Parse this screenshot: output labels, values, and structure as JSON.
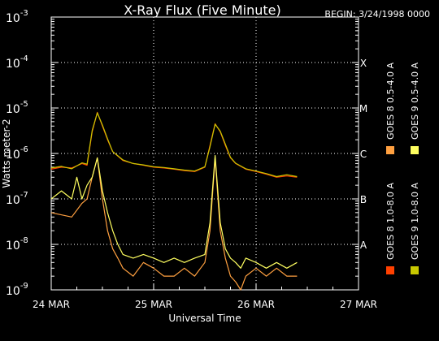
{
  "chart_data": {
    "type": "line",
    "title": "X-Ray Flux (Five Minute)",
    "begin_label": "BEGIN: 3/24/1998 0000",
    "xlabel": "Universal Time",
    "ylabel": "Watts meter-2",
    "x_ticks": [
      "24 MAR",
      "25 MAR",
      "26 MAR",
      "27 MAR"
    ],
    "xlim_days": [
      0,
      3
    ],
    "y_scale": "log",
    "ylim": [
      1e-09,
      0.001
    ],
    "y_ticks": [
      {
        "mantissa": "10",
        "exp": "-9"
      },
      {
        "mantissa": "10",
        "exp": "-8"
      },
      {
        "mantissa": "10",
        "exp": "-7"
      },
      {
        "mantissa": "10",
        "exp": "-6"
      },
      {
        "mantissa": "10",
        "exp": "-5"
      },
      {
        "mantissa": "10",
        "exp": "-4"
      },
      {
        "mantissa": "10",
        "exp": "-3"
      }
    ],
    "flare_classes": [
      {
        "label": "A",
        "value": 1e-08
      },
      {
        "label": "B",
        "value": 1e-07
      },
      {
        "label": "C",
        "value": 1e-06
      },
      {
        "label": "M",
        "value": 1e-05
      },
      {
        "label": "X",
        "value": 0.0001
      }
    ],
    "series": [
      {
        "name": "GOES 8 1.0-8.0 A",
        "color": "#ff4000",
        "x": [
          0.0,
          0.1,
          0.2,
          0.3,
          0.35,
          0.4,
          0.45,
          0.5,
          0.55,
          0.6,
          0.7,
          0.8,
          0.9,
          1.0,
          1.1,
          1.2,
          1.3,
          1.4,
          1.5,
          1.55,
          1.6,
          1.65,
          1.7,
          1.75,
          1.8,
          1.9,
          2.0,
          2.1,
          2.2,
          2.3,
          2.4
        ],
        "y": [
          4.5e-07,
          5e-07,
          4.8e-07,
          6e-07,
          5.5e-07,
          3e-06,
          8e-06,
          4e-06,
          2e-06,
          1.1e-06,
          7e-07,
          6e-07,
          5.5e-07,
          5e-07,
          4.8e-07,
          4.5e-07,
          4.2e-07,
          4e-07,
          5e-07,
          1.5e-06,
          4.5e-06,
          3e-06,
          1.5e-06,
          8e-07,
          6e-07,
          4.5e-07,
          4e-07,
          3.5e-07,
          3e-07,
          3.2e-07,
          3e-07
        ]
      },
      {
        "name": "GOES 8 0.5-4.0 A",
        "color": "#ffa040",
        "x": [
          0.0,
          0.2,
          0.3,
          0.35,
          0.4,
          0.45,
          0.5,
          0.55,
          0.6,
          0.65,
          0.7,
          0.8,
          0.9,
          1.0,
          1.1,
          1.2,
          1.3,
          1.4,
          1.5,
          1.55,
          1.6,
          1.65,
          1.7,
          1.75,
          1.8,
          1.85,
          1.9,
          2.0,
          2.1,
          2.2,
          2.3,
          2.4
        ],
        "y": [
          5e-08,
          4e-08,
          8e-08,
          1e-07,
          3e-07,
          8e-07,
          1e-07,
          2e-08,
          8e-09,
          5e-09,
          3e-09,
          2e-09,
          4e-09,
          3e-09,
          2e-09,
          2e-09,
          3e-09,
          2e-09,
          4e-09,
          2e-08,
          8e-07,
          2e-08,
          5e-09,
          2e-09,
          1.5e-09,
          1e-09,
          2e-09,
          3e-09,
          2e-09,
          3e-09,
          2e-09,
          2e-09
        ]
      },
      {
        "name": "GOES 9 1.0-8.0 A",
        "color": "#c8c800",
        "x": [
          0.0,
          0.1,
          0.2,
          0.3,
          0.35,
          0.4,
          0.45,
          0.5,
          0.55,
          0.6,
          0.7,
          0.8,
          0.9,
          1.0,
          1.1,
          1.2,
          1.3,
          1.4,
          1.5,
          1.55,
          1.6,
          1.65,
          1.7,
          1.75,
          1.8,
          1.9,
          2.0,
          2.1,
          2.2,
          2.3,
          2.4
        ],
        "y": [
          4.8e-07,
          5.2e-07,
          4.6e-07,
          6.2e-07,
          5.8e-07,
          3.2e-06,
          7.8e-06,
          4.2e-06,
          2.1e-06,
          1.1e-06,
          7.2e-07,
          6e-07,
          5.6e-07,
          5.1e-07,
          4.9e-07,
          4.6e-07,
          4.3e-07,
          4.1e-07,
          5.1e-07,
          1.4e-06,
          4.4e-06,
          3.1e-06,
          1.6e-06,
          8.2e-07,
          6.1e-07,
          4.6e-07,
          4.1e-07,
          3.6e-07,
          3.1e-07,
          3.4e-07,
          3.1e-07
        ]
      },
      {
        "name": "GOES 9 0.5-4.0 A",
        "color": "#ffff60",
        "x": [
          0.0,
          0.1,
          0.2,
          0.25,
          0.3,
          0.35,
          0.4,
          0.45,
          0.5,
          0.55,
          0.6,
          0.65,
          0.7,
          0.8,
          0.9,
          1.0,
          1.1,
          1.2,
          1.3,
          1.4,
          1.5,
          1.55,
          1.6,
          1.65,
          1.7,
          1.75,
          1.8,
          1.85,
          1.9,
          2.0,
          2.1,
          2.2,
          2.3,
          2.4
        ],
        "y": [
          1e-07,
          1.5e-07,
          1e-07,
          3e-07,
          1e-07,
          2e-07,
          3e-07,
          8e-07,
          1.5e-07,
          5e-08,
          2e-08,
          1e-08,
          6e-09,
          5e-09,
          6e-09,
          5e-09,
          4e-09,
          5e-09,
          4e-09,
          5e-09,
          6e-09,
          3e-08,
          9e-07,
          3e-08,
          8e-09,
          5e-09,
          4e-09,
          3e-09,
          5e-09,
          4e-09,
          3e-09,
          4e-09,
          3e-09,
          4e-09
        ]
      }
    ]
  }
}
